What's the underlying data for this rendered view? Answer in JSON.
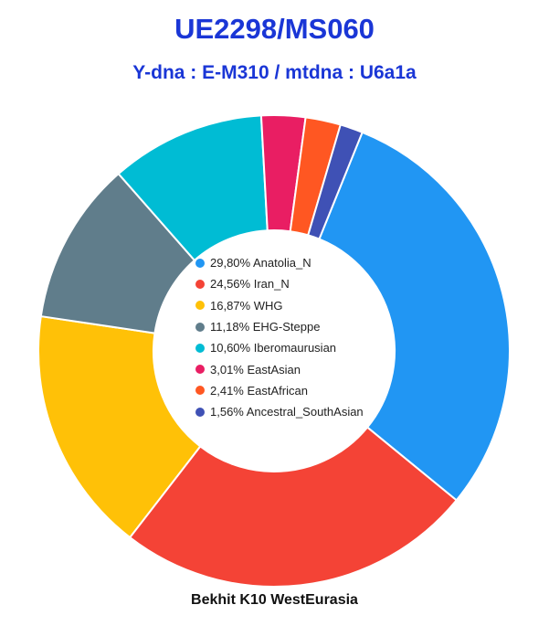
{
  "header": {
    "title": "UE2298/MS060",
    "subtitle": "Y-dna : E-M310 / mtdna : U6a1a"
  },
  "footer": {
    "caption": "Bekhit K10 WestEurasia"
  },
  "chart_data": {
    "type": "pie",
    "donut": true,
    "start_angle_deg": 22,
    "legend_position": "center",
    "series": [
      {
        "label": "29,80% Anatolia_N",
        "value": 29.8,
        "color": "#2196f3"
      },
      {
        "label": "24,56% Iran_N",
        "value": 24.56,
        "color": "#f44336"
      },
      {
        "label": "16,87% WHG",
        "value": 16.87,
        "color": "#ffc107"
      },
      {
        "label": "11,18% EHG-Steppe",
        "value": 11.18,
        "color": "#607d8b"
      },
      {
        "label": "10,60% Iberomaurusian",
        "value": 10.6,
        "color": "#00bcd4"
      },
      {
        "label": "3,01% EastAsian",
        "value": 3.01,
        "color": "#e91e63"
      },
      {
        "label": "2,41% EastAfrican",
        "value": 2.41,
        "color": "#ff5722"
      },
      {
        "label": "1,56% Ancestral_SouthAsian",
        "value": 1.56,
        "color": "#3f51b5"
      }
    ]
  }
}
